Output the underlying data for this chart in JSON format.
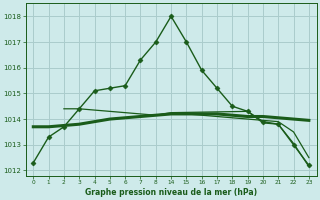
{
  "bg_color": "#ceeaea",
  "grid_color": "#aacccc",
  "line_color": "#1a5c1a",
  "xlabel": "Graphe pression niveau de la mer (hPa)",
  "ylim": [
    1011.8,
    1018.5
  ],
  "yticks": [
    1012,
    1013,
    1014,
    1015,
    1016,
    1017,
    1018
  ],
  "hours": [
    0,
    1,
    2,
    3,
    4,
    5,
    6,
    7,
    8,
    14,
    15,
    16,
    17,
    18,
    19,
    20,
    21,
    22,
    23
  ],
  "series1_y": [
    1012.3,
    1013.3,
    1013.7,
    1014.4,
    1015.1,
    1015.2,
    1015.3,
    1016.3,
    1017.0,
    1018.0,
    1017.0,
    1015.9,
    1015.2,
    1014.5,
    1014.3,
    1013.9,
    1013.8,
    1013.0,
    1012.2
  ],
  "series2_y": [
    1013.7,
    1013.7,
    1013.75,
    1013.8,
    1013.9,
    1014.0,
    1014.05,
    1014.1,
    1014.15,
    1014.2,
    1014.2,
    1014.2,
    1014.2,
    1014.15,
    1014.1,
    1014.1,
    1014.05,
    1014.0,
    1013.95
  ],
  "series3_y": [
    1013.7,
    1013.7,
    1013.75,
    1013.8,
    1013.9,
    1014.0,
    1014.05,
    1014.1,
    1014.15,
    1014.2,
    1014.2,
    1014.15,
    1014.1,
    1014.05,
    1014.0,
    1013.95,
    1013.9,
    1013.5,
    1012.5
  ],
  "series4_xi": [
    2,
    3,
    8,
    9,
    14,
    15,
    16,
    17,
    18
  ],
  "series4_y": [
    1014.4,
    1014.4,
    1014.15,
    1014.25,
    1014.3,
    1013.85,
    1013.8,
    1013.05,
    1012.15
  ]
}
